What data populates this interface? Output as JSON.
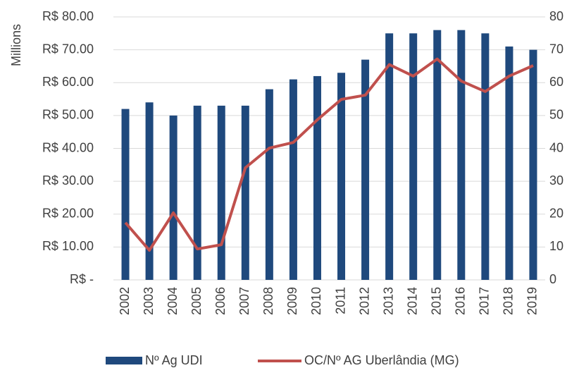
{
  "chart_data": {
    "type": "bar_line",
    "y_label": "Millions",
    "categories": [
      "2002",
      "2003",
      "2004",
      "2005",
      "2006",
      "2007",
      "2008",
      "2009",
      "2010",
      "2011",
      "2012",
      "2013",
      "2014",
      "2015",
      "2016",
      "2017",
      "2018",
      "2019"
    ],
    "series": [
      {
        "name": "Nº Ag UDI",
        "type": "bar",
        "axis": "y2",
        "color": "#1f497d",
        "values": [
          52,
          54,
          50,
          53,
          53,
          53,
          58,
          61,
          62,
          63,
          67,
          75,
          75,
          76,
          76,
          75,
          71,
          70
        ]
      },
      {
        "name": "OC/Nº AG Uberlândia (MG)",
        "type": "line",
        "axis": "y",
        "color": "#c0504d",
        "values": [
          17.4,
          9.0,
          20.4,
          9.4,
          10.7,
          34.1,
          40.1,
          41.8,
          48.7,
          54.9,
          56.2,
          65.5,
          62.0,
          67.2,
          60.5,
          57.3,
          62.0,
          65.2
        ]
      }
    ],
    "ylim": [
      0,
      80
    ],
    "yticks": [
      {
        "value": 0,
        "label": "R$ -"
      },
      {
        "value": 10,
        "label": "R$ 10.00"
      },
      {
        "value": 20,
        "label": "R$ 20.00"
      },
      {
        "value": 30,
        "label": "R$ 30.00"
      },
      {
        "value": 40,
        "label": "R$ 40.00"
      },
      {
        "value": 50,
        "label": "R$ 50.00"
      },
      {
        "value": 60,
        "label": "R$ 60.00"
      },
      {
        "value": 70,
        "label": "R$ 70.00"
      },
      {
        "value": 80,
        "label": "R$ 80.00"
      }
    ],
    "y2lim": [
      0,
      80
    ],
    "y2ticks": [
      0,
      10,
      20,
      30,
      40,
      50,
      60,
      70,
      80
    ],
    "grid": true,
    "legend": "bottom"
  }
}
